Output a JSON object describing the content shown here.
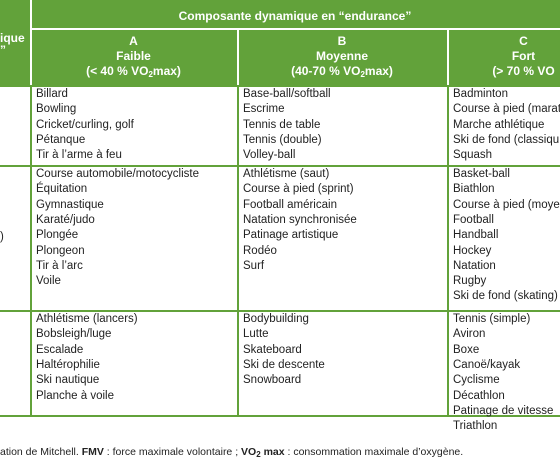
{
  "header": {
    "title": "Composante dynamique en “endurance”",
    "left_fragments": [
      "ique",
      "”"
    ]
  },
  "columns": [
    {
      "letter": "A",
      "label": "Faible",
      "range": [
        {
          "text": "(< 40 % VO"
        },
        {
          "text": "2",
          "sub": true
        },
        {
          "text": "max)"
        }
      ]
    },
    {
      "letter": "B",
      "label": "Moyenne",
      "range": [
        {
          "text": "(40-70 % VO"
        },
        {
          "text": "2",
          "sub": true
        },
        {
          "text": "max)"
        }
      ]
    },
    {
      "letter": "C",
      "label": "Fort",
      "range": [
        {
          "text": "(> 70 % VO"
        }
      ]
    }
  ],
  "rows": [
    {
      "left": null,
      "cells": [
        [
          "Billard",
          "Bowling",
          "Cricket/curling, golf",
          "Pétanque",
          "Tir à l’arme à feu"
        ],
        [
          "Base-ball/softball",
          "Escrime",
          "Tennis de table",
          "Tennis (double)",
          "Volley-ball"
        ],
        [
          "Badminton",
          "Course à pied (marat",
          "Marche athlétique",
          "Ski de fond (classiqu",
          "Squash"
        ]
      ]
    },
    {
      "left": ")",
      "cells": [
        [
          "Course automobile/motocycliste",
          "Équitation",
          "Gymnastique",
          "Karaté/judo",
          "Plongée",
          "Plongeon",
          "Tir à l’arc",
          "Voile"
        ],
        [
          "Athlétisme (saut)",
          "Course à pied (sprint)",
          "Football américain",
          "Natation synchronisée",
          "Patinage artistique",
          "Rodéo",
          "Surf"
        ],
        [
          "Basket-ball",
          "Biathlon",
          "Course à pied (moye",
          "Football",
          "Handball",
          "Hockey",
          "Natation",
          "Rugby",
          "Ski de fond (skating)"
        ]
      ]
    },
    {
      "left": null,
      "cells": [
        [
          "Athlétisme (lancers)",
          "Bobsleigh/luge",
          "Escalade",
          "Haltérophilie",
          "Ski nautique",
          "Planche à voile"
        ],
        [
          "Bodybuilding",
          "Lutte",
          "Skateboard",
          "Ski de descente",
          "Snowboard"
        ],
        [
          "Tennis (simple)",
          "Aviron",
          "Boxe",
          "Canoë/kayak",
          "Cyclisme",
          "Décathlon",
          "Patinage de vitesse",
          "Triathlon"
        ]
      ]
    }
  ],
  "footnote": [
    {
      "text": "ation de Mitchell. "
    },
    {
      "text": "FMV",
      "bold": true
    },
    {
      "text": " : force maximale volontaire ; "
    },
    {
      "text": "VO",
      "bold": true
    },
    {
      "text": "2",
      "bold": true,
      "sub": true
    },
    {
      "text": " max",
      "bold": true
    },
    {
      "text": " : consommation maximale d’oxygène."
    }
  ]
}
